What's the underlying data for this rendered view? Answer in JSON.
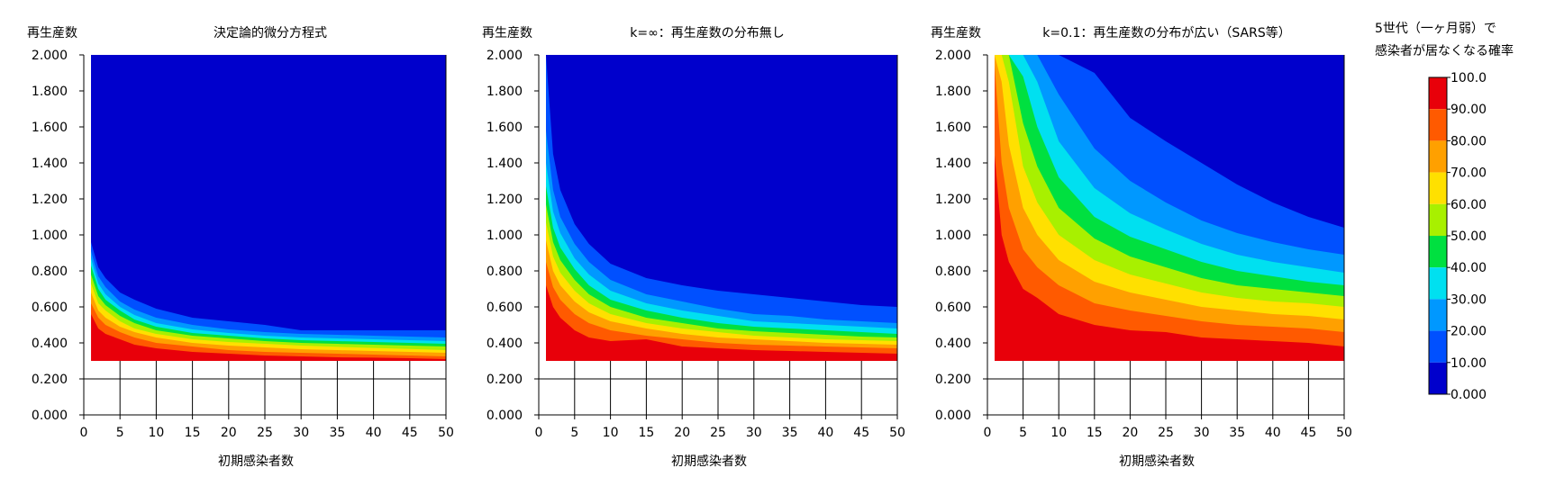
{
  "colorbar": {
    "title_lines": [
      "5世代（一ヶ月弱）で",
      "感染者が居なくなる確率"
    ],
    "labels": [
      "100.0",
      "90.00",
      "80.00",
      "70.00",
      "60.00",
      "50.00",
      "40.00",
      "30.00",
      "20.00",
      "10.00",
      "0.000"
    ],
    "colors": [
      "#e8000a",
      "#ff5a00",
      "#ffa000",
      "#ffe000",
      "#a8f000",
      "#00e040",
      "#00e0f0",
      "#0098ff",
      "#0050ff",
      "#0000cc"
    ]
  },
  "chart_data": [
    {
      "type": "heatmap",
      "title": "決定論的微分方程式",
      "ylabel": "再生産数",
      "xlabel": "初期感染者数",
      "xlim": [
        0,
        50
      ],
      "ylim": [
        0,
        2
      ],
      "x_ticks": [
        "0",
        "5",
        "10",
        "15",
        "20",
        "25",
        "30",
        "35",
        "40",
        "45",
        "50"
      ],
      "y_ticks": [
        "0.000",
        "0.200",
        "0.400",
        "0.600",
        "0.800",
        "1.000",
        "1.200",
        "1.400",
        "1.600",
        "1.800",
        "2.000"
      ],
      "data_region": {
        "x": [
          1,
          50
        ],
        "y": [
          0.3,
          2.0
        ]
      },
      "contour_x": [
        1,
        2,
        3,
        5,
        7,
        10,
        15,
        20,
        25,
        30,
        35,
        40,
        45,
        50
      ],
      "contour_levels": [
        {
          "level": 90,
          "y": [
            0.56,
            0.48,
            0.45,
            0.42,
            0.39,
            0.37,
            0.35,
            0.34,
            0.33,
            0.325,
            0.32,
            0.318,
            0.315,
            0.31
          ]
        },
        {
          "level": 80,
          "y": [
            0.62,
            0.54,
            0.5,
            0.46,
            0.43,
            0.4,
            0.38,
            0.36,
            0.35,
            0.345,
            0.34,
            0.335,
            0.33,
            0.325
          ]
        },
        {
          "level": 70,
          "y": [
            0.68,
            0.58,
            0.54,
            0.49,
            0.46,
            0.43,
            0.4,
            0.385,
            0.375,
            0.365,
            0.36,
            0.355,
            0.35,
            0.345
          ]
        },
        {
          "level": 60,
          "y": [
            0.73,
            0.62,
            0.58,
            0.52,
            0.48,
            0.45,
            0.42,
            0.405,
            0.395,
            0.385,
            0.378,
            0.372,
            0.366,
            0.36
          ]
        },
        {
          "level": 50,
          "y": [
            0.78,
            0.66,
            0.61,
            0.55,
            0.51,
            0.47,
            0.44,
            0.425,
            0.41,
            0.4,
            0.395,
            0.39,
            0.385,
            0.38
          ]
        },
        {
          "level": 40,
          "y": [
            0.83,
            0.7,
            0.64,
            0.58,
            0.53,
            0.49,
            0.455,
            0.44,
            0.425,
            0.415,
            0.41,
            0.405,
            0.4,
            0.395
          ]
        },
        {
          "level": 30,
          "y": [
            0.87,
            0.73,
            0.67,
            0.6,
            0.555,
            0.51,
            0.475,
            0.455,
            0.44,
            0.43,
            0.425,
            0.42,
            0.415,
            0.41
          ]
        },
        {
          "level": 20,
          "y": [
            0.91,
            0.77,
            0.71,
            0.63,
            0.585,
            0.54,
            0.5,
            0.475,
            0.46,
            0.45,
            0.445,
            0.44,
            0.435,
            0.43
          ]
        },
        {
          "level": 10,
          "y": [
            0.96,
            0.82,
            0.76,
            0.68,
            0.64,
            0.59,
            0.54,
            0.52,
            0.5,
            0.47,
            0.47,
            0.47,
            0.47,
            0.47
          ]
        }
      ]
    },
    {
      "type": "heatmap",
      "title": "k=∞：再生産数の分布無し",
      "ylabel": "再生産数",
      "xlabel": "初期感染者数",
      "xlim": [
        0,
        50
      ],
      "ylim": [
        0,
        2
      ],
      "x_ticks": [
        "0",
        "5",
        "10",
        "15",
        "20",
        "25",
        "30",
        "35",
        "40",
        "45",
        "50"
      ],
      "y_ticks": [
        "0.000",
        "0.200",
        "0.400",
        "0.600",
        "0.800",
        "1.000",
        "1.200",
        "1.400",
        "1.600",
        "1.800",
        "2.000"
      ],
      "data_region": {
        "x": [
          1,
          50
        ],
        "y": [
          0.3,
          2.0
        ]
      },
      "contour_x": [
        1,
        2,
        3,
        5,
        7,
        10,
        15,
        20,
        25,
        30,
        35,
        40,
        45,
        50
      ],
      "contour_levels": [
        {
          "level": 90,
          "y": [
            0.72,
            0.6,
            0.54,
            0.47,
            0.43,
            0.41,
            0.42,
            0.38,
            0.37,
            0.36,
            0.355,
            0.35,
            0.345,
            0.34
          ]
        },
        {
          "level": 80,
          "y": [
            0.85,
            0.71,
            0.64,
            0.56,
            0.51,
            0.47,
            0.44,
            0.42,
            0.4,
            0.39,
            0.385,
            0.38,
            0.375,
            0.37
          ]
        },
        {
          "level": 70,
          "y": [
            0.97,
            0.8,
            0.72,
            0.63,
            0.57,
            0.52,
            0.48,
            0.45,
            0.43,
            0.42,
            0.41,
            0.4,
            0.395,
            0.39
          ]
        },
        {
          "level": 60,
          "y": [
            1.07,
            0.88,
            0.79,
            0.69,
            0.62,
            0.56,
            0.51,
            0.48,
            0.46,
            0.44,
            0.43,
            0.42,
            0.415,
            0.41
          ]
        },
        {
          "level": 50,
          "y": [
            1.17,
            0.96,
            0.86,
            0.75,
            0.67,
            0.6,
            0.54,
            0.51,
            0.48,
            0.465,
            0.455,
            0.445,
            0.435,
            0.43
          ]
        },
        {
          "level": 40,
          "y": [
            1.27,
            1.04,
            0.93,
            0.81,
            0.72,
            0.64,
            0.58,
            0.54,
            0.51,
            0.49,
            0.48,
            0.47,
            0.46,
            0.45
          ]
        },
        {
          "level": 30,
          "y": [
            1.4,
            1.13,
            1.01,
            0.87,
            0.78,
            0.69,
            0.62,
            0.58,
            0.55,
            0.52,
            0.51,
            0.5,
            0.49,
            0.48
          ]
        },
        {
          "level": 20,
          "y": [
            1.58,
            1.25,
            1.1,
            0.95,
            0.85,
            0.75,
            0.67,
            0.63,
            0.59,
            0.56,
            0.55,
            0.53,
            0.52,
            0.51
          ]
        },
        {
          "level": 10,
          "y": [
            2.0,
            1.45,
            1.25,
            1.06,
            0.95,
            0.84,
            0.76,
            0.72,
            0.69,
            0.67,
            0.65,
            0.63,
            0.61,
            0.6
          ]
        }
      ]
    },
    {
      "type": "heatmap",
      "title": "k=0.1：再生産数の分布が広い（SARS等）",
      "ylabel": "再生産数",
      "xlabel": "初期感染者数",
      "xlim": [
        0,
        50
      ],
      "ylim": [
        0,
        2
      ],
      "x_ticks": [
        "0",
        "5",
        "10",
        "15",
        "20",
        "25",
        "30",
        "35",
        "40",
        "45",
        "50"
      ],
      "y_ticks": [
        "0.000",
        "0.200",
        "0.400",
        "0.600",
        "0.800",
        "1.000",
        "1.200",
        "1.400",
        "1.600",
        "1.800",
        "2.000"
      ],
      "data_region": {
        "x": [
          1,
          50
        ],
        "y": [
          0.3,
          2.0
        ]
      },
      "contour_x": [
        1,
        2,
        3,
        5,
        7,
        10,
        15,
        20,
        25,
        30,
        35,
        40,
        45,
        50
      ],
      "contour_levels": [
        {
          "level": 90,
          "y": [
            1.45,
            1.0,
            0.85,
            0.7,
            0.65,
            0.56,
            0.5,
            0.47,
            0.46,
            0.43,
            0.42,
            0.41,
            0.4,
            0.38
          ]
        },
        {
          "level": 80,
          "y": [
            1.95,
            1.4,
            1.15,
            0.92,
            0.82,
            0.72,
            0.62,
            0.58,
            0.55,
            0.52,
            0.5,
            0.49,
            0.48,
            0.46
          ]
        },
        {
          "level": 70,
          "y": [
            2.0,
            1.85,
            1.5,
            1.15,
            1.0,
            0.86,
            0.74,
            0.68,
            0.64,
            0.6,
            0.58,
            0.56,
            0.55,
            0.53
          ]
        },
        {
          "level": 60,
          "y": [
            2.0,
            2.0,
            1.85,
            1.38,
            1.18,
            1.0,
            0.86,
            0.78,
            0.73,
            0.68,
            0.65,
            0.63,
            0.62,
            0.6
          ]
        },
        {
          "level": 50,
          "y": [
            2.0,
            2.0,
            2.0,
            1.62,
            1.38,
            1.15,
            0.98,
            0.88,
            0.82,
            0.76,
            0.72,
            0.7,
            0.68,
            0.66
          ]
        },
        {
          "level": 40,
          "y": [
            2.0,
            2.0,
            2.0,
            1.88,
            1.6,
            1.32,
            1.1,
            0.99,
            0.92,
            0.85,
            0.8,
            0.77,
            0.74,
            0.72
          ]
        },
        {
          "level": 30,
          "y": [
            2.0,
            2.0,
            2.0,
            2.0,
            1.85,
            1.52,
            1.26,
            1.12,
            1.03,
            0.95,
            0.89,
            0.85,
            0.82,
            0.79
          ]
        },
        {
          "level": 20,
          "y": [
            2.0,
            2.0,
            2.0,
            2.0,
            2.0,
            1.78,
            1.48,
            1.3,
            1.18,
            1.08,
            1.01,
            0.96,
            0.92,
            0.89
          ]
        },
        {
          "level": 10,
          "y": [
            2.0,
            2.0,
            2.0,
            2.0,
            2.0,
            2.0,
            1.9,
            1.65,
            1.52,
            1.4,
            1.28,
            1.18,
            1.1,
            1.04
          ]
        }
      ]
    }
  ]
}
